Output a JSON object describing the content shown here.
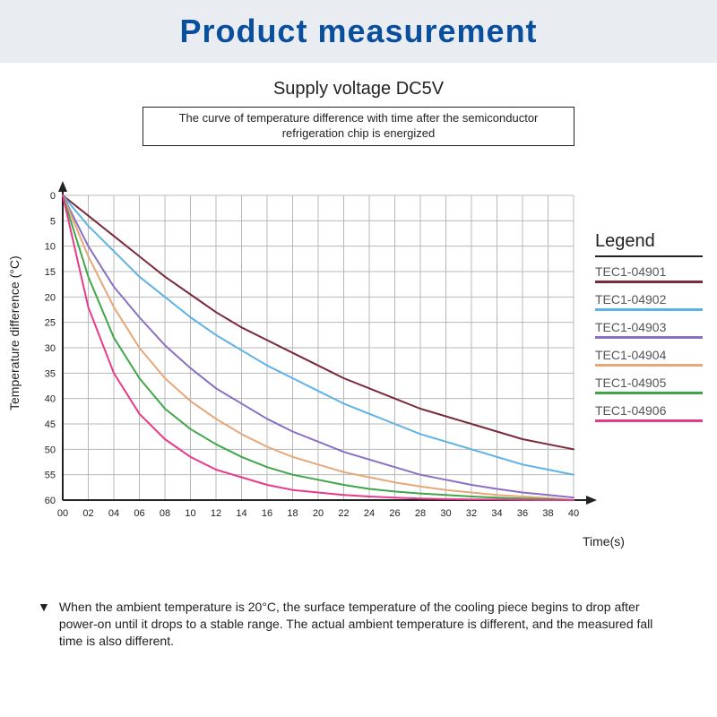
{
  "banner": {
    "title": "Product measurement",
    "background_color": "#e9edf1",
    "title_color": "#0a4f9e",
    "title_fontsize": 36
  },
  "subtitle": "Supply voltage DC5V",
  "caption": "The curve of temperature difference with time after the semiconductor refrigeration chip is energized",
  "chart": {
    "type": "line",
    "background_color": "#ffffff",
    "grid_color": "#b8b8b8",
    "axis_color": "#222222",
    "ylabel": "Temperature difference (°C)",
    "xlabel": "Time(s)",
    "label_fontsize": 14,
    "tick_fontsize": 11,
    "x_ticks": [
      "00",
      "02",
      "04",
      "06",
      "08",
      "10",
      "12",
      "14",
      "16",
      "18",
      "20",
      "22",
      "24",
      "26",
      "28",
      "30",
      "32",
      "34",
      "36",
      "38",
      "40"
    ],
    "y_ticks": [
      "0",
      "5",
      "10",
      "15",
      "20",
      "25",
      "30",
      "35",
      "40",
      "45",
      "50",
      "55",
      "60"
    ],
    "xlim": [
      0,
      40
    ],
    "ylim": [
      0,
      60
    ],
    "line_width": 2,
    "arrowheads": true,
    "series": [
      {
        "name": "TEC1-04901",
        "color": "#7b2a3a",
        "x": [
          0,
          2,
          4,
          6,
          8,
          10,
          12,
          14,
          16,
          18,
          20,
          22,
          24,
          26,
          28,
          30,
          32,
          34,
          36,
          38,
          40
        ],
        "y": [
          0,
          4,
          8,
          12,
          16,
          19.5,
          23,
          26,
          28.5,
          31,
          33.5,
          36,
          38,
          40,
          42,
          43.5,
          45,
          46.5,
          48,
          49,
          50
        ]
      },
      {
        "name": "TEC1-04902",
        "color": "#5fb2e6",
        "x": [
          0,
          2,
          4,
          6,
          8,
          10,
          12,
          14,
          16,
          18,
          20,
          22,
          24,
          26,
          28,
          30,
          32,
          34,
          36,
          38,
          40
        ],
        "y": [
          0,
          6,
          11,
          16,
          20,
          24,
          27.5,
          30.5,
          33.5,
          36,
          38.5,
          41,
          43,
          45,
          47,
          48.5,
          50,
          51.5,
          53,
          54,
          55
        ]
      },
      {
        "name": "TEC1-04903",
        "color": "#8a6fc4",
        "x": [
          0,
          2,
          4,
          6,
          8,
          10,
          12,
          14,
          16,
          18,
          20,
          22,
          24,
          26,
          28,
          30,
          32,
          34,
          36,
          38,
          40
        ],
        "y": [
          0,
          10,
          18,
          24,
          29.5,
          34,
          38,
          41,
          44,
          46.5,
          48.5,
          50.5,
          52,
          53.5,
          55,
          56,
          57,
          57.8,
          58.5,
          59,
          59.5
        ]
      },
      {
        "name": "TEC1-04904",
        "color": "#e6a878",
        "x": [
          0,
          2,
          4,
          6,
          8,
          10,
          12,
          14,
          16,
          18,
          20,
          22,
          24,
          26,
          28,
          30,
          32,
          34,
          36,
          38,
          40
        ],
        "y": [
          0,
          12,
          22,
          30,
          36,
          40.5,
          44,
          47,
          49.5,
          51.5,
          53,
          54.5,
          55.5,
          56.5,
          57.3,
          58,
          58.5,
          59,
          59.3,
          59.6,
          60
        ]
      },
      {
        "name": "TEC1-04905",
        "color": "#3fa64a",
        "x": [
          0,
          2,
          4,
          6,
          8,
          10,
          12,
          14,
          16,
          18,
          20,
          22,
          24,
          26,
          28,
          30,
          32,
          34,
          36,
          38,
          40
        ],
        "y": [
          0,
          16,
          28,
          36,
          42,
          46,
          49,
          51.5,
          53.5,
          55,
          56,
          57,
          57.8,
          58.3,
          58.7,
          59,
          59.3,
          59.5,
          59.7,
          59.8,
          60
        ]
      },
      {
        "name": "TEC1-04906",
        "color": "#e63b8a",
        "x": [
          0,
          2,
          4,
          6,
          8,
          10,
          12,
          14,
          16,
          18,
          20,
          22,
          24,
          26,
          28,
          30,
          32,
          34,
          36,
          38,
          40
        ],
        "y": [
          0,
          22,
          35,
          43,
          48,
          51.5,
          54,
          55.5,
          57,
          58,
          58.5,
          59,
          59.3,
          59.5,
          59.7,
          59.8,
          59.85,
          59.9,
          59.95,
          60,
          60
        ]
      }
    ]
  },
  "legend_title": "Legend",
  "footnote_marker": "▼",
  "footnote": "When the ambient temperature is 20°C, the surface temperature of the cooling piece begins to drop after power-on until it drops to a stable range. The actual ambient temperature is different, and the measured fall time is also different."
}
